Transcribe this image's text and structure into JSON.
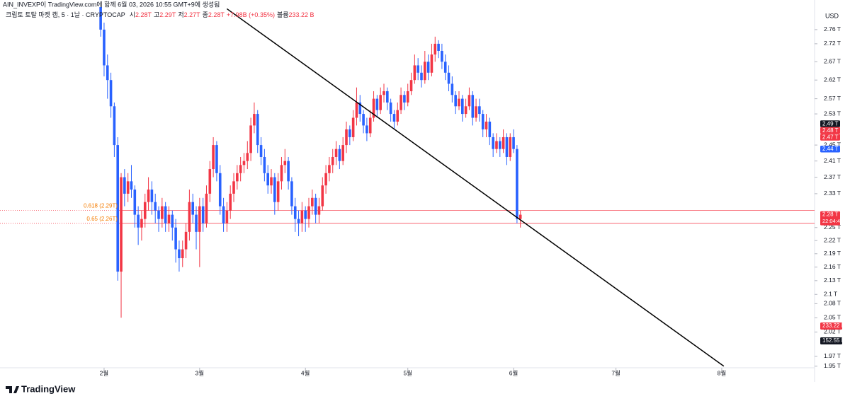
{
  "chart_data": {
    "type": "candlestick",
    "header_line": "AIN_INVEXP이 TradingView.com에 함께 6월 03, 2026 10:55 GMT+9에 생성됨",
    "symbol_text": "크립토 토탈 마켓 캡, 5 · 1날 · CRYPTOCAP",
    "ohlc_legend": [
      "시",
      "2.28T",
      "고",
      "2.29T",
      "저",
      "2.27T",
      "종",
      "2.28T",
      "+7.98B (+0.35%)",
      "볼륨",
      "233.22 B"
    ],
    "currency": "USD",
    "brand": "TradingView",
    "up_color": "#f23645",
    "down_color": "#2962ff",
    "log_scale": true,
    "grid": false,
    "xlim": [
      1.5,
      240.2
    ],
    "xticks": [
      {
        "value": 32,
        "label": "2월"
      },
      {
        "value": 60,
        "label": "3월"
      },
      {
        "value": 91,
        "label": "4월"
      },
      {
        "value": 121,
        "label": "5월"
      },
      {
        "value": 152,
        "label": "6월"
      },
      {
        "value": 182,
        "label": "7월"
      },
      {
        "value": 213,
        "label": "8월"
      }
    ],
    "ylim": [
      1.944,
      2.825
    ],
    "yticks": [
      {
        "value": 2.76,
        "label": "2.76 T"
      },
      {
        "value": 2.72,
        "label": "2.72 T"
      },
      {
        "value": 2.67,
        "label": "2.67 T"
      },
      {
        "value": 2.62,
        "label": "2.62 T"
      },
      {
        "value": 2.57,
        "label": "2.57 T"
      },
      {
        "value": 2.53,
        "label": "2.53 T"
      },
      {
        "value": 2.45,
        "label": "2.45 T"
      },
      {
        "value": 2.41,
        "label": "2.41 T"
      },
      {
        "value": 2.37,
        "label": "2.37 T"
      },
      {
        "value": 2.33,
        "label": "2.33 T"
      },
      {
        "value": 2.25,
        "label": "2.25 T"
      },
      {
        "value": 2.22,
        "label": "2.22 T"
      },
      {
        "value": 2.19,
        "label": "2.19 T"
      },
      {
        "value": 2.16,
        "label": "2.16 T"
      },
      {
        "value": 2.13,
        "label": "2.13 T"
      },
      {
        "value": 2.1,
        "label": "2.1 T"
      },
      {
        "value": 2.08,
        "label": "2.08 T"
      },
      {
        "value": 2.05,
        "label": "2.05 T"
      },
      {
        "value": 2.02,
        "label": "2.02 T"
      },
      {
        "value": 1.97,
        "label": "1.97 T"
      },
      {
        "value": 1.95,
        "label": "1.95 T"
      }
    ],
    "x": [
      31,
      32,
      33,
      34,
      35,
      36,
      37,
      38,
      39,
      40,
      41,
      42,
      43,
      44,
      45,
      46,
      47,
      48,
      49,
      50,
      51,
      52,
      53,
      54,
      55,
      56,
      57,
      58,
      59,
      60,
      61,
      62,
      63,
      64,
      65,
      66,
      67,
      68,
      69,
      70,
      71,
      72,
      73,
      74,
      75,
      76,
      77,
      78,
      79,
      80,
      81,
      82,
      83,
      84,
      85,
      86,
      87,
      88,
      89,
      90,
      91,
      92,
      93,
      94,
      95,
      96,
      97,
      98,
      99,
      100,
      101,
      102,
      103,
      104,
      105,
      106,
      107,
      108,
      109,
      110,
      111,
      112,
      113,
      114,
      115,
      116,
      117,
      118,
      119,
      120,
      121,
      122,
      123,
      124,
      125,
      126,
      127,
      128,
      129,
      130,
      131,
      132,
      133,
      134,
      135,
      136,
      137,
      138,
      139,
      140,
      141,
      142,
      143,
      144,
      145,
      146,
      147,
      148,
      149,
      150,
      151,
      152,
      153,
      154
    ],
    "ohlc": [
      [
        2.83,
        2.85,
        2.74,
        2.76
      ],
      [
        2.76,
        2.78,
        2.63,
        2.66
      ],
      [
        2.66,
        2.69,
        2.57,
        2.62
      ],
      [
        2.62,
        2.64,
        2.52,
        2.55
      ],
      [
        2.55,
        2.56,
        2.42,
        2.45
      ],
      [
        2.45,
        2.47,
        2.13,
        2.15
      ],
      [
        2.15,
        2.38,
        2.05,
        2.37
      ],
      [
        2.37,
        2.39,
        2.3,
        2.33
      ],
      [
        2.33,
        2.38,
        2.31,
        2.36
      ],
      [
        2.36,
        2.4,
        2.32,
        2.34
      ],
      [
        2.34,
        2.35,
        2.25,
        2.28
      ],
      [
        2.28,
        2.3,
        2.21,
        2.25
      ],
      [
        2.25,
        2.29,
        2.22,
        2.27
      ],
      [
        2.27,
        2.33,
        2.25,
        2.31
      ],
      [
        2.31,
        2.37,
        2.29,
        2.34
      ],
      [
        2.34,
        2.36,
        2.28,
        2.31
      ],
      [
        2.31,
        2.33,
        2.26,
        2.29
      ],
      [
        2.29,
        2.3,
        2.24,
        2.27
      ],
      [
        2.27,
        2.32,
        2.25,
        2.3
      ],
      [
        2.3,
        2.31,
        2.24,
        2.26
      ],
      [
        2.26,
        2.3,
        2.24,
        2.28
      ],
      [
        2.28,
        2.29,
        2.22,
        2.25
      ],
      [
        2.25,
        2.27,
        2.17,
        2.2
      ],
      [
        2.2,
        2.22,
        2.15,
        2.18
      ],
      [
        2.18,
        2.22,
        2.16,
        2.2
      ],
      [
        2.2,
        2.26,
        2.18,
        2.24
      ],
      [
        2.24,
        2.34,
        2.22,
        2.31
      ],
      [
        2.31,
        2.33,
        2.26,
        2.28
      ],
      [
        2.28,
        2.3,
        2.2,
        2.24
      ],
      [
        2.24,
        2.32,
        2.16,
        2.3
      ],
      [
        2.3,
        2.32,
        2.24,
        2.26
      ],
      [
        2.26,
        2.35,
        2.25,
        2.33
      ],
      [
        2.33,
        2.41,
        2.31,
        2.39
      ],
      [
        2.39,
        2.47,
        2.37,
        2.45
      ],
      [
        2.45,
        2.46,
        2.36,
        2.38
      ],
      [
        2.38,
        2.4,
        2.28,
        2.3
      ],
      [
        2.3,
        2.32,
        2.24,
        2.26
      ],
      [
        2.26,
        2.31,
        2.24,
        2.29
      ],
      [
        2.29,
        2.35,
        2.27,
        2.33
      ],
      [
        2.33,
        2.38,
        2.31,
        2.36
      ],
      [
        2.36,
        2.4,
        2.34,
        2.38
      ],
      [
        2.38,
        2.42,
        2.36,
        2.4
      ],
      [
        2.4,
        2.43,
        2.38,
        2.41
      ],
      [
        2.41,
        2.46,
        2.39,
        2.43
      ],
      [
        2.43,
        2.52,
        2.41,
        2.5
      ],
      [
        2.5,
        2.56,
        2.48,
        2.53
      ],
      [
        2.53,
        2.54,
        2.43,
        2.45
      ],
      [
        2.45,
        2.47,
        2.4,
        2.42
      ],
      [
        2.42,
        2.44,
        2.36,
        2.38
      ],
      [
        2.38,
        2.4,
        2.33,
        2.35
      ],
      [
        2.35,
        2.39,
        2.33,
        2.37
      ],
      [
        2.37,
        2.38,
        2.28,
        2.31
      ],
      [
        2.31,
        2.38,
        2.29,
        2.36
      ],
      [
        2.36,
        2.42,
        2.34,
        2.4
      ],
      [
        2.4,
        2.44,
        2.38,
        2.41
      ],
      [
        2.41,
        2.42,
        2.34,
        2.36
      ],
      [
        2.36,
        2.37,
        2.28,
        2.3
      ],
      [
        2.3,
        2.32,
        2.24,
        2.27
      ],
      [
        2.27,
        2.29,
        2.23,
        2.26
      ],
      [
        2.26,
        2.31,
        2.24,
        2.29
      ],
      [
        2.29,
        2.3,
        2.24,
        2.27
      ],
      [
        2.27,
        2.32,
        2.25,
        2.3
      ],
      [
        2.3,
        2.34,
        2.28,
        2.32
      ],
      [
        2.32,
        2.33,
        2.26,
        2.28
      ],
      [
        2.28,
        2.32,
        2.26,
        2.3
      ],
      [
        2.3,
        2.37,
        2.29,
        2.35
      ],
      [
        2.35,
        2.4,
        2.33,
        2.38
      ],
      [
        2.38,
        2.42,
        2.36,
        2.4
      ],
      [
        2.4,
        2.44,
        2.38,
        2.42
      ],
      [
        2.42,
        2.46,
        2.4,
        2.44
      ],
      [
        2.44,
        2.45,
        2.39,
        2.41
      ],
      [
        2.41,
        2.47,
        2.4,
        2.45
      ],
      [
        2.45,
        2.51,
        2.43,
        2.49
      ],
      [
        2.49,
        2.5,
        2.45,
        2.47
      ],
      [
        2.47,
        2.54,
        2.46,
        2.52
      ],
      [
        2.52,
        2.6,
        2.5,
        2.56
      ],
      [
        2.56,
        2.58,
        2.51,
        2.53
      ],
      [
        2.53,
        2.54,
        2.48,
        2.5
      ],
      [
        2.5,
        2.52,
        2.46,
        2.48
      ],
      [
        2.48,
        2.54,
        2.47,
        2.52
      ],
      [
        2.52,
        2.59,
        2.51,
        2.57
      ],
      [
        2.57,
        2.58,
        2.52,
        2.54
      ],
      [
        2.54,
        2.6,
        2.53,
        2.58
      ],
      [
        2.58,
        2.61,
        2.56,
        2.59
      ],
      [
        2.59,
        2.6,
        2.54,
        2.56
      ],
      [
        2.56,
        2.57,
        2.51,
        2.53
      ],
      [
        2.53,
        2.54,
        2.49,
        2.51
      ],
      [
        2.51,
        2.56,
        2.5,
        2.54
      ],
      [
        2.54,
        2.6,
        2.53,
        2.58
      ],
      [
        2.58,
        2.59,
        2.54,
        2.56
      ],
      [
        2.56,
        2.61,
        2.55,
        2.59
      ],
      [
        2.59,
        2.64,
        2.58,
        2.62
      ],
      [
        2.62,
        2.69,
        2.61,
        2.66
      ],
      [
        2.66,
        2.68,
        2.62,
        2.64
      ],
      [
        2.64,
        2.66,
        2.6,
        2.62
      ],
      [
        2.62,
        2.7,
        2.61,
        2.67
      ],
      [
        2.67,
        2.69,
        2.62,
        2.64
      ],
      [
        2.64,
        2.72,
        2.63,
        2.69
      ],
      [
        2.69,
        2.74,
        2.67,
        2.72
      ],
      [
        2.72,
        2.73,
        2.68,
        2.7
      ],
      [
        2.7,
        2.72,
        2.65,
        2.67
      ],
      [
        2.67,
        2.69,
        2.62,
        2.64
      ],
      [
        2.64,
        2.66,
        2.59,
        2.61
      ],
      [
        2.61,
        2.63,
        2.56,
        2.58
      ],
      [
        2.58,
        2.59,
        2.53,
        2.55
      ],
      [
        2.55,
        2.59,
        2.54,
        2.57
      ],
      [
        2.57,
        2.58,
        2.51,
        2.53
      ],
      [
        2.53,
        2.57,
        2.52,
        2.55
      ],
      [
        2.55,
        2.6,
        2.54,
        2.58
      ],
      [
        2.58,
        2.59,
        2.5,
        2.52
      ],
      [
        2.52,
        2.57,
        2.51,
        2.55
      ],
      [
        2.55,
        2.57,
        2.51,
        2.53
      ],
      [
        2.53,
        2.54,
        2.47,
        2.49
      ],
      [
        2.49,
        2.53,
        2.47,
        2.51
      ],
      [
        2.51,
        2.52,
        2.45,
        2.47
      ],
      [
        2.47,
        2.48,
        2.42,
        2.44
      ],
      [
        2.44,
        2.48,
        2.43,
        2.46
      ],
      [
        2.46,
        2.47,
        2.42,
        2.44
      ],
      [
        2.44,
        2.49,
        2.43,
        2.47
      ],
      [
        2.47,
        2.48,
        2.4,
        2.42
      ],
      [
        2.42,
        2.48,
        2.41,
        2.47
      ],
      [
        2.47,
        2.49,
        2.43,
        2.44
      ],
      [
        2.44,
        2.45,
        2.26,
        2.27
      ],
      [
        2.27,
        2.29,
        2.25,
        2.28
      ]
    ],
    "trendline": {
      "x": [
        68,
        213.6
      ],
      "y": [
        2.82,
        1.95
      ],
      "color": "#000000"
    },
    "fib_levels": [
      {
        "price": 2.29,
        "label": "0.618 (2.29T)"
      },
      {
        "price": 2.26,
        "label": "0.65 (2.26T)"
      }
    ],
    "price_labels": [
      {
        "value": 2.49,
        "label": "2.49 T",
        "color": "#131722"
      },
      {
        "value": 2.48,
        "label": "2.48 T",
        "color": "#f23645"
      },
      {
        "value": 2.47,
        "label": "2.47 T",
        "color": "#f23645"
      },
      {
        "value": 2.44,
        "label": "2.44 T",
        "color": "#2962ff"
      },
      {
        "value": 2.28,
        "label": "2.28 T",
        "color": "#f23645",
        "sub": "22:04:43"
      }
    ],
    "volume_labels": [
      {
        "label": "233.22 B",
        "color": "#f23645"
      },
      {
        "label": "152.55 B",
        "color": "#131722"
      }
    ]
  }
}
